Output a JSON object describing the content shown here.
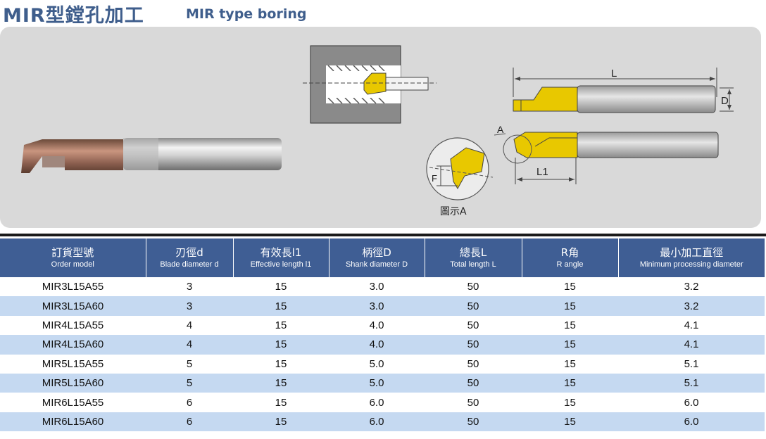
{
  "title": {
    "zh": "MIR型鏜孔加工",
    "en": "MIR type boring"
  },
  "diagram": {
    "label_L": "L",
    "label_D": "D",
    "label_A": "A",
    "label_L1": "L1",
    "label_F": "F",
    "caption": "圖示A"
  },
  "colors": {
    "header_bg": "#3f5e94",
    "row_alt": "#c5d9f1",
    "title": "#3f5e8c",
    "insert": "#e8c800"
  },
  "table": {
    "headers": [
      {
        "zh": "訂貨型號",
        "en": "Order model"
      },
      {
        "zh": "刃徑d",
        "en": "Blade diameter d"
      },
      {
        "zh": "有效長l1",
        "en": "Effective length l1"
      },
      {
        "zh": "柄徑D",
        "en": "Shank diameter D"
      },
      {
        "zh": "總長L",
        "en": "Total length L"
      },
      {
        "zh": "R角",
        "en": "R angle"
      },
      {
        "zh": "最小加工直徑",
        "en": "Minimum processing diameter"
      }
    ],
    "rows": [
      [
        "MIR3L15A55",
        "3",
        "15",
        "3.0",
        "50",
        "15",
        "3.2"
      ],
      [
        "MIR3L15A60",
        "3",
        "15",
        "3.0",
        "50",
        "15",
        "3.2"
      ],
      [
        "MIR4L15A55",
        "4",
        "15",
        "4.0",
        "50",
        "15",
        "4.1"
      ],
      [
        "MIR4L15A60",
        "4",
        "15",
        "4.0",
        "50",
        "15",
        "4.1"
      ],
      [
        "MIR5L15A55",
        "5",
        "15",
        "5.0",
        "50",
        "15",
        "5.1"
      ],
      [
        "MIR5L15A60",
        "5",
        "15",
        "5.0",
        "50",
        "15",
        "5.1"
      ],
      [
        "MIR6L15A55",
        "6",
        "15",
        "6.0",
        "50",
        "15",
        "6.0"
      ],
      [
        "MIR6L15A60",
        "6",
        "15",
        "6.0",
        "50",
        "15",
        "6.0"
      ]
    ]
  }
}
